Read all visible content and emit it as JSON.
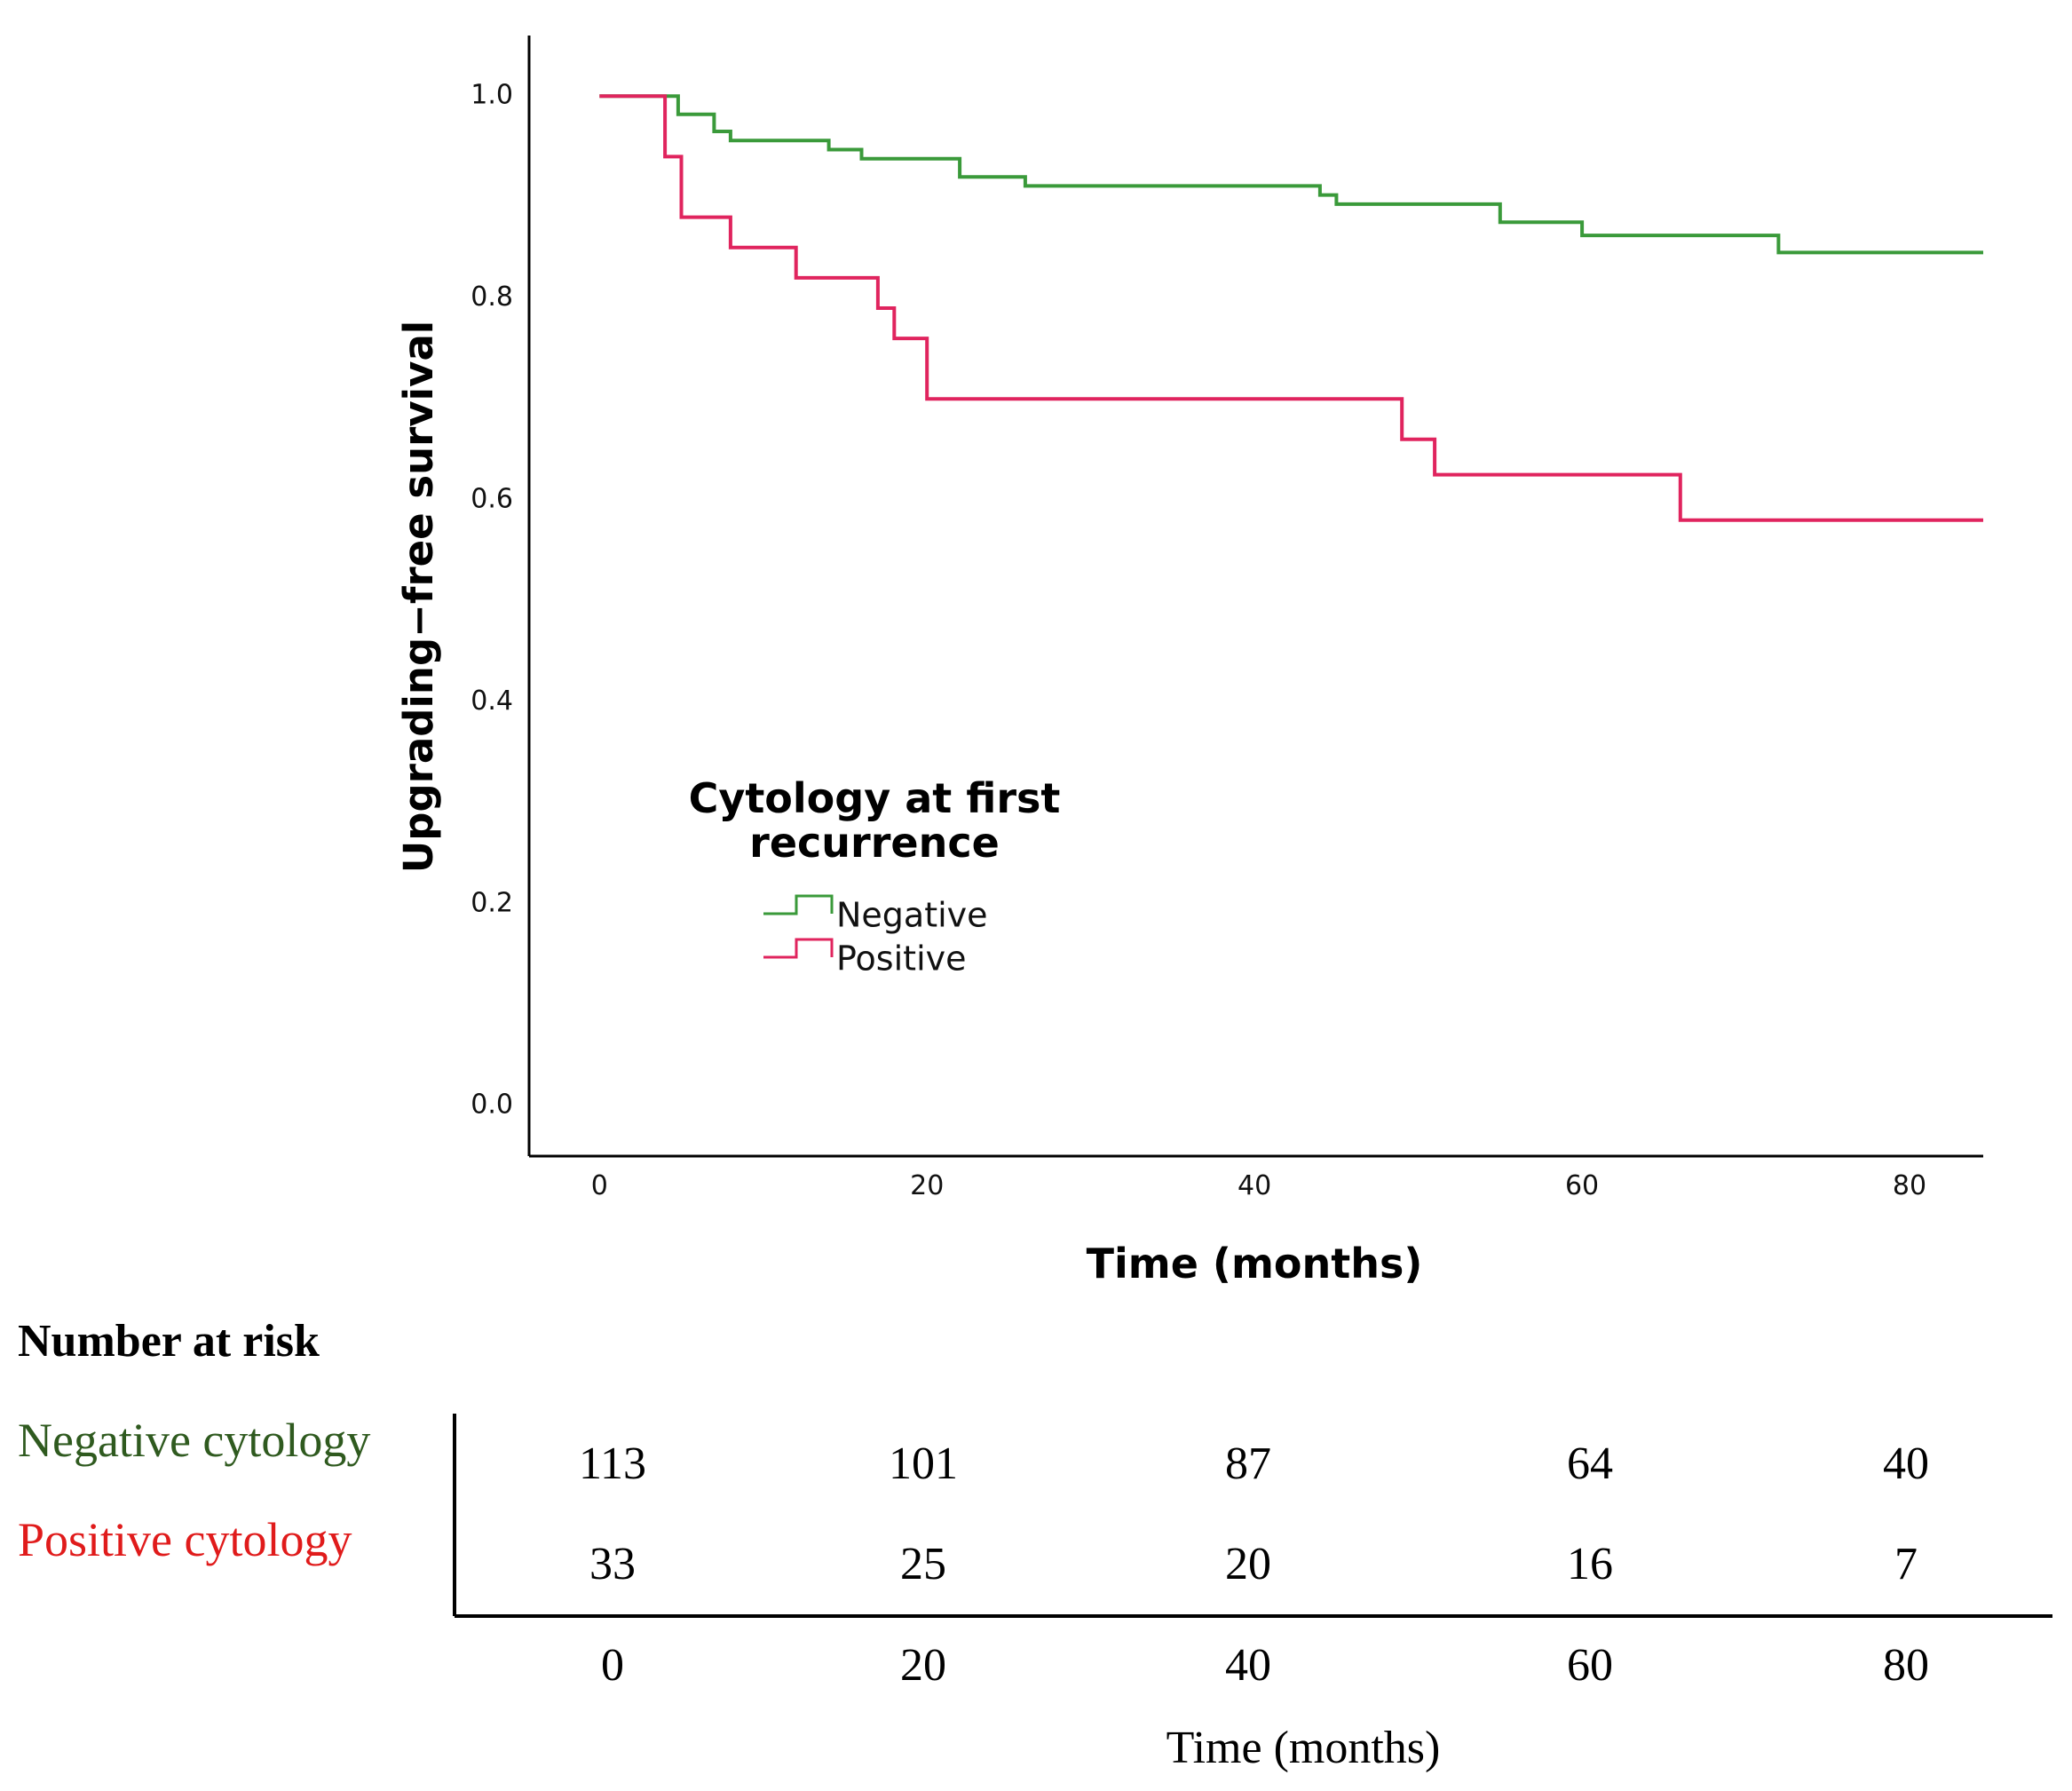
{
  "chart_data": {
    "type": "line",
    "subtype": "kaplan-meier-step",
    "xlabel": "Time (months)",
    "ylabel": "Upgrading−free survival",
    "xlim": [
      -4.3,
      84.5
    ],
    "ylim": [
      -0.05,
      1.06
    ],
    "xticks": [
      "0",
      "20",
      "40",
      "60",
      "80"
    ],
    "yticks": [
      "0.0",
      "0.2",
      "0.4",
      "0.6",
      "0.8",
      "1.0"
    ],
    "legend": {
      "title_line1": "Cytology at first",
      "title_line2": "recurrence",
      "position": "center-left"
    },
    "series": [
      {
        "name": "Negative",
        "color": "#3a9a3a",
        "times": [
          0,
          4.8,
          7,
          8,
          14,
          16,
          22,
          26,
          44,
          45,
          55,
          60,
          72,
          84.5
        ],
        "values": [
          1.0,
          0.982,
          0.965,
          0.956,
          0.947,
          0.938,
          0.92,
          0.911,
          0.902,
          0.893,
          0.875,
          0.862,
          0.845,
          0.845
        ]
      },
      {
        "name": "Positive",
        "color": "#e0245e",
        "times": [
          0,
          4,
          5,
          8,
          12,
          17,
          18,
          20,
          49,
          51,
          66,
          84.5
        ],
        "values": [
          1.0,
          0.94,
          0.88,
          0.85,
          0.82,
          0.79,
          0.76,
          0.7,
          0.66,
          0.625,
          0.58,
          0.58
        ]
      }
    ],
    "risk_table": {
      "title": "Number at risk",
      "x_title": "Time (months)",
      "times": [
        "0",
        "20",
        "40",
        "60",
        "80"
      ],
      "rows": [
        {
          "label": "Negative cytology",
          "color": "#2f5a1f",
          "counts": [
            "113",
            "101",
            "87",
            "64",
            "40"
          ]
        },
        {
          "label": "Positive cytology",
          "color": "#e01b1b",
          "counts": [
            "33",
            "25",
            "20",
            "16",
            "7"
          ]
        }
      ]
    }
  }
}
